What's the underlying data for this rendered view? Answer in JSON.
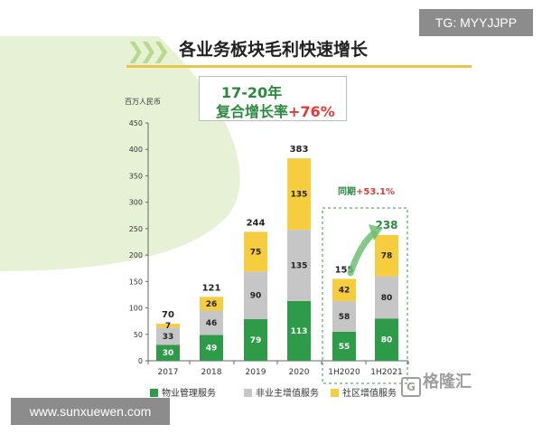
{
  "title": "各业务板块毛利快速增长",
  "cagr": {
    "line1": "17-20年",
    "line2_prefix": "复合增长率",
    "line2_value": "+76%"
  },
  "same_period": {
    "label": "同期",
    "value": "+53.1%"
  },
  "watermarks": {
    "tg": "TG: MYYJJPP",
    "url": "www.sunxuewen.com"
  },
  "brand": {
    "logo_glyph": "G",
    "name": "格隆汇"
  },
  "colors": {
    "series1": "#2e9b48",
    "series2": "#c6c6c6",
    "series3": "#f6cd3f",
    "accent_green": "#2a8a3e",
    "accent_red": "#e53935",
    "title_rule": "#e9c646"
  },
  "chart_data": {
    "type": "bar",
    "stacked": true,
    "ylabel": "百万人民币",
    "ylim": [
      0,
      450
    ],
    "yticks": [
      0,
      50,
      100,
      150,
      200,
      250,
      300,
      350,
      400,
      450
    ],
    "categories": [
      "2017",
      "2018",
      "2019",
      "2020",
      "1H2020",
      "1H2021"
    ],
    "series": [
      {
        "name": "物业管理服务",
        "values": [
          30,
          49,
          79,
          113,
          55,
          80
        ]
      },
      {
        "name": "非业主增值服务",
        "values": [
          33,
          46,
          90,
          135,
          58,
          80
        ]
      },
      {
        "name": "社区增值服务",
        "values": [
          7,
          26,
          75,
          135,
          42,
          78
        ]
      }
    ],
    "totals": [
      70,
      121,
      244,
      383,
      155,
      238
    ],
    "legend_position": "bottom",
    "grid": false
  }
}
